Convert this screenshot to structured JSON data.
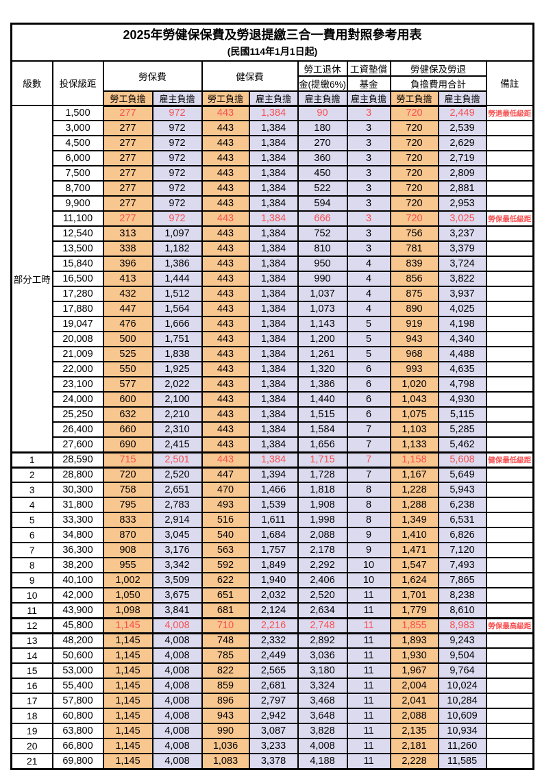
{
  "title": {
    "line1": "2025年勞健保保費及勞退提繳三合一費用對照參考用表",
    "line2": "(民國114年1月1日起)"
  },
  "header": {
    "level": "級數",
    "bracket": "投保級距",
    "labor": "勞保費",
    "health": "健保費",
    "pension_line1": "勞工退休",
    "pension_line2": "金(提繳6%)",
    "fund_line1": "工資墊償",
    "fund_line2": "基金",
    "total_line1": "勞健保及勞退",
    "total_line2": "負擔費用合計",
    "note": "備註",
    "employee": "勞工負擔",
    "employer": "雇主負擔"
  },
  "colors": {
    "employee_fill": "#F8C68F",
    "employer_fill": "#DCDAEF",
    "highlight_red": "#F85050",
    "border": "#000000"
  },
  "table": {
    "group": {
      "label": "部分工時",
      "span": 23
    },
    "rows": [
      {
        "v": [
          "1,500",
          "277",
          "972",
          "443",
          "1,384",
          "90",
          "3",
          "720",
          "2,449"
        ],
        "note": "勞退最低級距",
        "red": true
      },
      {
        "v": [
          "3,000",
          "277",
          "972",
          "443",
          "1,384",
          "180",
          "3",
          "720",
          "2,539"
        ]
      },
      {
        "v": [
          "4,500",
          "277",
          "972",
          "443",
          "1,384",
          "270",
          "3",
          "720",
          "2,629"
        ]
      },
      {
        "v": [
          "6,000",
          "277",
          "972",
          "443",
          "1,384",
          "360",
          "3",
          "720",
          "2,719"
        ]
      },
      {
        "v": [
          "7,500",
          "277",
          "972",
          "443",
          "1,384",
          "450",
          "3",
          "720",
          "2,809"
        ]
      },
      {
        "v": [
          "8,700",
          "277",
          "972",
          "443",
          "1,384",
          "522",
          "3",
          "720",
          "2,881"
        ]
      },
      {
        "v": [
          "9,900",
          "277",
          "972",
          "443",
          "1,384",
          "594",
          "3",
          "720",
          "2,953"
        ]
      },
      {
        "v": [
          "11,100",
          "277",
          "972",
          "443",
          "1,384",
          "666",
          "3",
          "720",
          "3,025"
        ],
        "note": "勞保最低級距",
        "red": true
      },
      {
        "v": [
          "12,540",
          "313",
          "1,097",
          "443",
          "1,384",
          "752",
          "3",
          "756",
          "3,237"
        ]
      },
      {
        "v": [
          "13,500",
          "338",
          "1,182",
          "443",
          "1,384",
          "810",
          "3",
          "781",
          "3,379"
        ]
      },
      {
        "v": [
          "15,840",
          "396",
          "1,386",
          "443",
          "1,384",
          "950",
          "4",
          "839",
          "3,724"
        ]
      },
      {
        "v": [
          "16,500",
          "413",
          "1,444",
          "443",
          "1,384",
          "990",
          "4",
          "856",
          "3,822"
        ]
      },
      {
        "v": [
          "17,280",
          "432",
          "1,512",
          "443",
          "1,384",
          "1,037",
          "4",
          "875",
          "3,937"
        ]
      },
      {
        "v": [
          "17,880",
          "447",
          "1,564",
          "443",
          "1,384",
          "1,073",
          "4",
          "890",
          "4,025"
        ]
      },
      {
        "v": [
          "19,047",
          "476",
          "1,666",
          "443",
          "1,384",
          "1,143",
          "5",
          "919",
          "4,198"
        ]
      },
      {
        "v": [
          "20,008",
          "500",
          "1,751",
          "443",
          "1,384",
          "1,200",
          "5",
          "943",
          "4,340"
        ]
      },
      {
        "v": [
          "21,009",
          "525",
          "1,838",
          "443",
          "1,384",
          "1,261",
          "5",
          "968",
          "4,488"
        ]
      },
      {
        "v": [
          "22,000",
          "550",
          "1,925",
          "443",
          "1,384",
          "1,320",
          "6",
          "993",
          "4,635"
        ]
      },
      {
        "v": [
          "23,100",
          "577",
          "2,022",
          "443",
          "1,384",
          "1,386",
          "6",
          "1,020",
          "4,798"
        ]
      },
      {
        "v": [
          "24,000",
          "600",
          "2,100",
          "443",
          "1,384",
          "1,440",
          "6",
          "1,043",
          "4,930"
        ]
      },
      {
        "v": [
          "25,250",
          "632",
          "2,210",
          "443",
          "1,384",
          "1,515",
          "6",
          "1,075",
          "5,115"
        ]
      },
      {
        "v": [
          "26,400",
          "660",
          "2,310",
          "443",
          "1,384",
          "1,584",
          "7",
          "1,103",
          "5,285"
        ]
      },
      {
        "v": [
          "27,600",
          "690",
          "2,415",
          "443",
          "1,384",
          "1,656",
          "7",
          "1,133",
          "5,462"
        ]
      },
      {
        "level": "1",
        "v": [
          "28,590",
          "715",
          "2,501",
          "443",
          "1,384",
          "1,715",
          "7",
          "1,158",
          "5,608"
        ],
        "note": "健保最低級距",
        "red": true,
        "thick": true
      },
      {
        "level": "2",
        "v": [
          "28,800",
          "720",
          "2,520",
          "447",
          "1,394",
          "1,728",
          "7",
          "1,167",
          "5,649"
        ]
      },
      {
        "level": "3",
        "v": [
          "30,300",
          "758",
          "2,651",
          "470",
          "1,466",
          "1,818",
          "8",
          "1,228",
          "5,943"
        ]
      },
      {
        "level": "4",
        "v": [
          "31,800",
          "795",
          "2,783",
          "493",
          "1,539",
          "1,908",
          "8",
          "1,288",
          "6,238"
        ]
      },
      {
        "level": "5",
        "v": [
          "33,300",
          "833",
          "2,914",
          "516",
          "1,611",
          "1,998",
          "8",
          "1,349",
          "6,531"
        ]
      },
      {
        "level": "6",
        "v": [
          "34,800",
          "870",
          "3,045",
          "540",
          "1,684",
          "2,088",
          "9",
          "1,410",
          "6,826"
        ]
      },
      {
        "level": "7",
        "v": [
          "36,300",
          "908",
          "3,176",
          "563",
          "1,757",
          "2,178",
          "9",
          "1,471",
          "7,120"
        ]
      },
      {
        "level": "8",
        "v": [
          "38,200",
          "955",
          "3,342",
          "592",
          "1,849",
          "2,292",
          "10",
          "1,547",
          "7,493"
        ]
      },
      {
        "level": "9",
        "v": [
          "40,100",
          "1,002",
          "3,509",
          "622",
          "1,940",
          "2,406",
          "10",
          "1,624",
          "7,865"
        ]
      },
      {
        "level": "10",
        "v": [
          "42,000",
          "1,050",
          "3,675",
          "651",
          "2,032",
          "2,520",
          "11",
          "1,701",
          "8,238"
        ]
      },
      {
        "level": "11",
        "v": [
          "43,900",
          "1,098",
          "3,841",
          "681",
          "2,124",
          "2,634",
          "11",
          "1,779",
          "8,610"
        ]
      },
      {
        "level": "12",
        "v": [
          "45,800",
          "1,145",
          "4,008",
          "710",
          "2,216",
          "2,748",
          "11",
          "1,855",
          "8,983"
        ],
        "note": "勞保最高級距",
        "red": true,
        "thick": true
      },
      {
        "level": "13",
        "v": [
          "48,200",
          "1,145",
          "4,008",
          "748",
          "2,332",
          "2,892",
          "11",
          "1,893",
          "9,243"
        ]
      },
      {
        "level": "14",
        "v": [
          "50,600",
          "1,145",
          "4,008",
          "785",
          "2,449",
          "3,036",
          "11",
          "1,930",
          "9,504"
        ]
      },
      {
        "level": "15",
        "v": [
          "53,000",
          "1,145",
          "4,008",
          "822",
          "2,565",
          "3,180",
          "11",
          "1,967",
          "9,764"
        ]
      },
      {
        "level": "16",
        "v": [
          "55,400",
          "1,145",
          "4,008",
          "859",
          "2,681",
          "3,324",
          "11",
          "2,004",
          "10,024"
        ]
      },
      {
        "level": "17",
        "v": [
          "57,800",
          "1,145",
          "4,008",
          "896",
          "2,797",
          "3,468",
          "11",
          "2,041",
          "10,284"
        ]
      },
      {
        "level": "18",
        "v": [
          "60,800",
          "1,145",
          "4,008",
          "943",
          "2,942",
          "3,648",
          "11",
          "2,088",
          "10,609"
        ]
      },
      {
        "level": "19",
        "v": [
          "63,800",
          "1,145",
          "4,008",
          "990",
          "3,087",
          "3,828",
          "11",
          "2,135",
          "10,934"
        ]
      },
      {
        "level": "20",
        "v": [
          "66,800",
          "1,145",
          "4,008",
          "1,036",
          "3,233",
          "4,008",
          "11",
          "2,181",
          "11,260"
        ]
      },
      {
        "level": "21",
        "v": [
          "69,800",
          "1,145",
          "4,008",
          "1,083",
          "3,378",
          "4,188",
          "11",
          "2,228",
          "11,585"
        ]
      }
    ]
  }
}
